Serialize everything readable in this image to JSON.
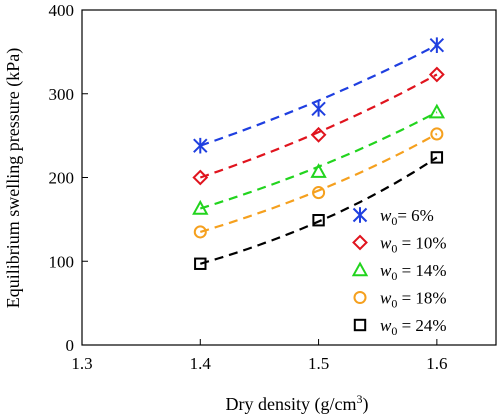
{
  "chart_data": {
    "type": "scatter",
    "xlabel_main": "Dry density (g/cm",
    "xlabel_sup": "3",
    "xlabel_close": ")",
    "ylabel": "Equilibrium swelling pressure (kPa)",
    "xlim": [
      1.3,
      1.65
    ],
    "ylim": [
      0,
      400
    ],
    "x_ticks": [
      "1.3",
      "1.4",
      "1.5",
      "1.6"
    ],
    "y_ticks": [
      "0",
      "100",
      "200",
      "300",
      "400"
    ],
    "grid": false,
    "legend_position": "bottom-right",
    "x": [
      1.4,
      1.5,
      1.6
    ],
    "series": [
      {
        "name_var": "w",
        "name_sub": "0",
        "name_rest": "= 6%",
        "marker": "asterisk",
        "color": "#1f3fe0",
        "values": [
          238,
          282,
          358
        ]
      },
      {
        "name_var": "w",
        "name_sub": "0",
        "name_rest": " = 10%",
        "marker": "diamond",
        "color": "#e0141e",
        "values": [
          200,
          251,
          323
        ]
      },
      {
        "name_var": "w",
        "name_sub": "0",
        "name_rest": " = 14%",
        "marker": "triangle",
        "color": "#22d41e",
        "values": [
          163,
          207,
          278
        ]
      },
      {
        "name_var": "w",
        "name_sub": "0",
        "name_rest": " = 18%",
        "marker": "circle",
        "color": "#f5a01e",
        "values": [
          135,
          182,
          252
        ]
      },
      {
        "name_var": "w",
        "name_sub": "0",
        "name_rest": " = 24%",
        "marker": "square",
        "color": "#000000",
        "values": [
          97,
          149,
          224
        ]
      }
    ]
  }
}
